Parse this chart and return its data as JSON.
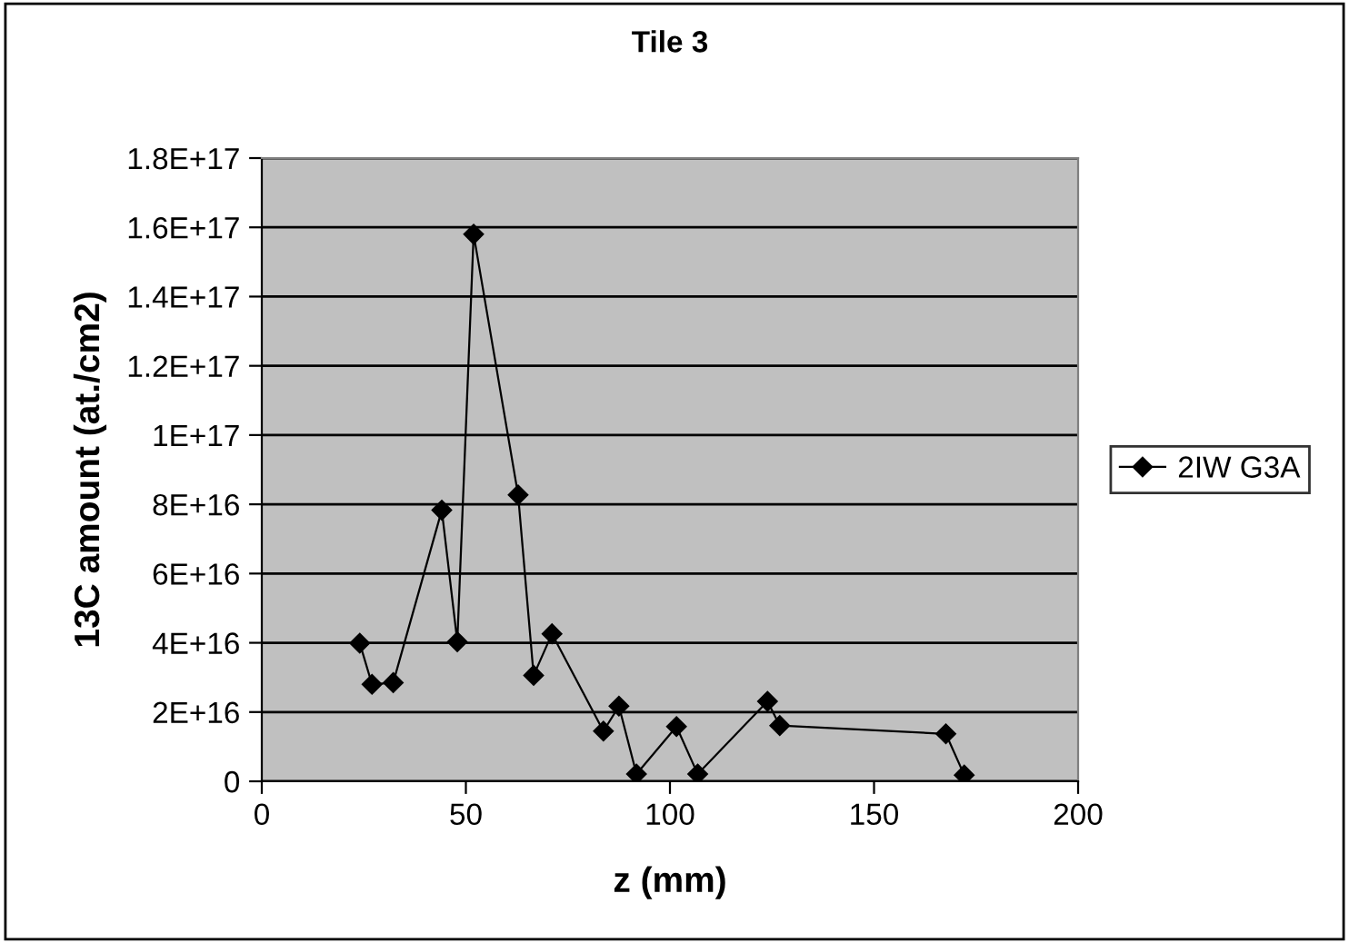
{
  "chart_data": {
    "type": "line",
    "title": "Tile 3",
    "xlabel": "z (mm)",
    "ylabel": "13C amount (at./cm2)",
    "series": [
      {
        "name": "2IW G3A",
        "color": "#000000",
        "x": [
          24.0,
          27.0,
          32.2,
          44.1,
          47.9,
          51.9,
          62.8,
          66.6,
          71.1,
          83.7,
          87.5,
          91.8,
          101.6,
          106.8,
          123.9,
          126.9,
          167.6,
          172.1
        ],
        "values": [
          3.99e+16,
          2.8e+16,
          2.85e+16,
          7.83e+16,
          4.03e+16,
          1.58e+17,
          8.27e+16,
          3.06e+16,
          4.26e+16,
          1.45e+16,
          2.17e+16,
          2100000000000000.0,
          1.58e+16,
          2100000000000000.0,
          2.31e+16,
          1.61e+16,
          1.37e+16,
          1800000000000000.0
        ]
      }
    ],
    "xlim": [
      0,
      200
    ],
    "xticks": [
      0,
      50,
      100,
      150,
      200
    ],
    "ylim": [
      0,
      1.8e+17
    ],
    "yticks": [
      {
        "value": 0,
        "label": "0"
      },
      {
        "value": 2e+16,
        "label": "2E+16"
      },
      {
        "value": 4e+16,
        "label": "4E+16"
      },
      {
        "value": 6e+16,
        "label": "6E+16"
      },
      {
        "value": 8e+16,
        "label": "8E+16"
      },
      {
        "value": 1e+17,
        "label": "1E+17"
      },
      {
        "value": 1.2e+17,
        "label": "1.2E+17"
      },
      {
        "value": 1.4e+17,
        "label": "1.4E+17"
      },
      {
        "value": 1.6e+17,
        "label": "1.6E+17"
      },
      {
        "value": 1.8e+17,
        "label": "1.8E+17"
      }
    ],
    "grid": "y",
    "legend": "right",
    "marker": "diamond",
    "line_style": "solid"
  }
}
